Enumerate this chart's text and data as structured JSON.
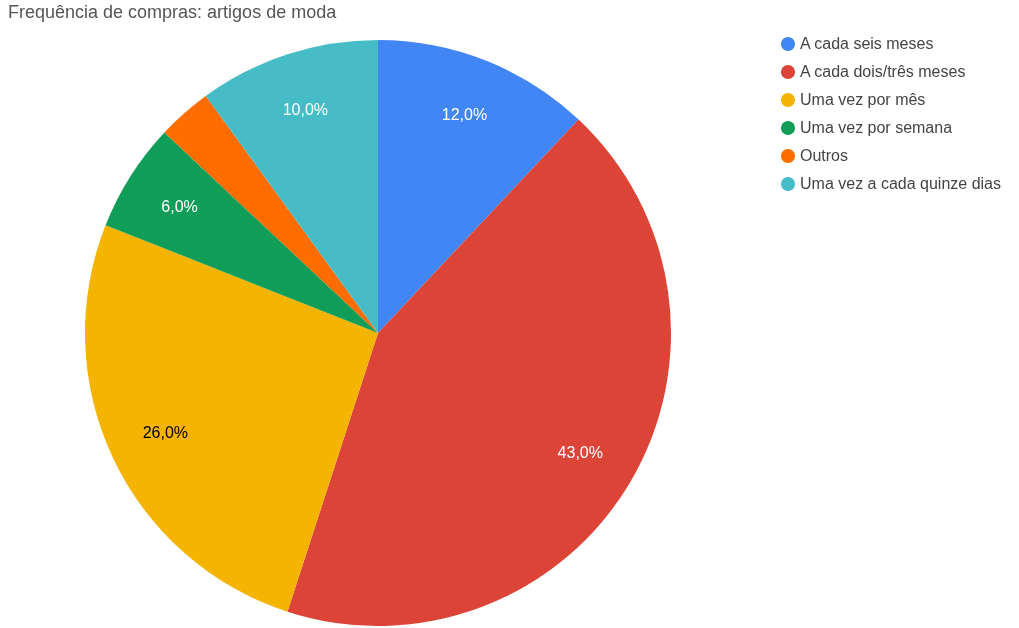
{
  "chart_data": {
    "type": "pie",
    "title": "Frequência de compras: artigos de moda",
    "categories": [
      "A cada seis meses",
      "A cada dois/três meses",
      "Uma vez por mês",
      "Uma vez por semana",
      "Outros",
      "Uma vez a cada quinze dias"
    ],
    "values": [
      12,
      43,
      26,
      6,
      3,
      10
    ],
    "colors": [
      "#4285f4",
      "#db4437",
      "#f4b400",
      "#0f9d58",
      "#ff6d01",
      "#46bdc6"
    ],
    "value_labels": [
      "12,0%",
      "43,0%",
      "26,0%",
      "6,0%",
      null,
      "10,0%"
    ],
    "legend": "top right"
  }
}
